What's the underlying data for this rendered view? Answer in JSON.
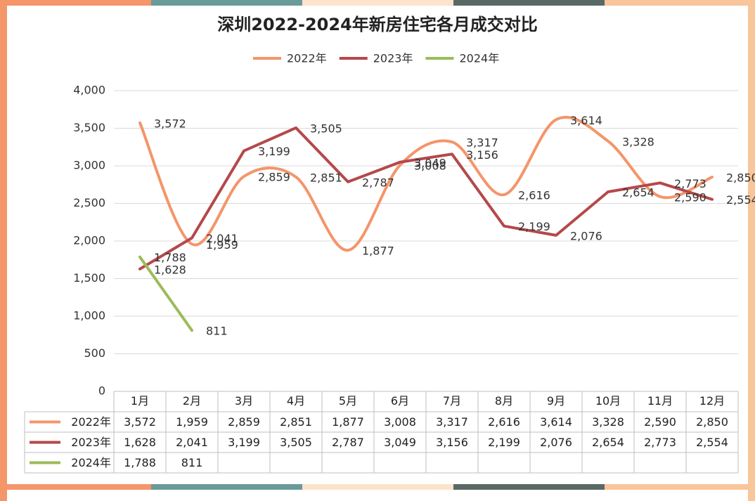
{
  "chart_data": {
    "type": "line",
    "title": "深圳2022-2024年新房住宅各月成交对比",
    "categories": [
      "1月",
      "2月",
      "3月",
      "4月",
      "5月",
      "6月",
      "7月",
      "8月",
      "9月",
      "10月",
      "11月",
      "12月"
    ],
    "series": [
      {
        "name": "2022年",
        "color": "#f4956a",
        "smooth": true,
        "values": [
          3572,
          1959,
          2859,
          2851,
          1877,
          3008,
          3317,
          2616,
          3614,
          3328,
          2590,
          2850
        ],
        "value_labels": [
          "3,572",
          "1,959",
          "2,859",
          "2,851",
          "1,877",
          "3,008",
          "3,317",
          "2,616",
          "3,614",
          "3,328",
          "2,590",
          "2,850"
        ]
      },
      {
        "name": "2023年",
        "color": "#b5484a",
        "smooth": false,
        "values": [
          1628,
          2041,
          3199,
          3505,
          2787,
          3049,
          3156,
          2199,
          2076,
          2654,
          2773,
          2554
        ],
        "value_labels": [
          "1,628",
          "2,041",
          "3,199",
          "3,505",
          "2,787",
          "3,049",
          "3,156",
          "2,199",
          "2,076",
          "2,654",
          "2,773",
          "2,554"
        ]
      },
      {
        "name": "2024年",
        "color": "#9bbb59",
        "smooth": false,
        "values": [
          1788,
          811,
          null,
          null,
          null,
          null,
          null,
          null,
          null,
          null,
          null,
          null
        ],
        "value_labels": [
          "1,788",
          "811",
          null,
          null,
          null,
          null,
          null,
          null,
          null,
          null,
          null,
          null
        ]
      }
    ],
    "ylim": [
      0,
      4000
    ],
    "yticks": [
      0,
      500,
      {
        "value": 1000,
        "label": "1,000"
      },
      {
        "value": 1500,
        "label": "1,500"
      },
      {
        "value": 2000,
        "label": "2,000"
      },
      {
        "value": 2500,
        "label": "2,500"
      },
      {
        "value": 3000,
        "label": "3,000"
      },
      {
        "value": 3500,
        "label": "3,500"
      },
      {
        "value": 4000,
        "label": "4,000"
      }
    ],
    "grid": true,
    "legend": "top"
  }
}
